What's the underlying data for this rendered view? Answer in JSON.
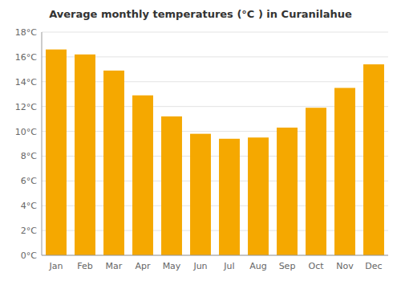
{
  "chart_data": {
    "type": "bar",
    "title": "Average monthly temperatures (°C ) in Curanilahue",
    "categories": [
      "Jan",
      "Feb",
      "Mar",
      "Apr",
      "May",
      "Jun",
      "Jul",
      "Aug",
      "Sep",
      "Oct",
      "Nov",
      "Dec"
    ],
    "values": [
      16.6,
      16.2,
      14.9,
      12.9,
      11.2,
      9.8,
      9.4,
      9.5,
      10.3,
      11.9,
      13.5,
      15.4
    ],
    "color": "#F5A800",
    "ylim": [
      0,
      18
    ],
    "yticks": [
      {
        "value": 0,
        "label": "0°C"
      },
      {
        "value": 2,
        "label": "2°C"
      },
      {
        "value": 4,
        "label": "4°C"
      },
      {
        "value": 6,
        "label": "6°C"
      },
      {
        "value": 8,
        "label": "8°C"
      },
      {
        "value": 10,
        "label": "10°C"
      },
      {
        "value": 12,
        "label": "12°C"
      },
      {
        "value": 14,
        "label": "14°C"
      },
      {
        "value": 16,
        "label": "16°C"
      },
      {
        "value": 18,
        "label": "18°C"
      }
    ],
    "grid": true
  }
}
